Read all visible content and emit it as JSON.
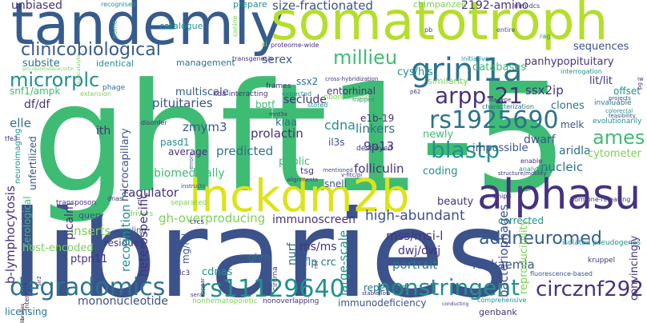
{
  "words": {
    "ghft15": "ghft1-5",
    "libraries": "libraries",
    "tandemly": "tandemly",
    "somatotroph": "somatotroph",
    "lnckdm2b": "lnckdm2b",
    "alphasu": "alphasu",
    "grinl1a": "grinl1a",
    "degradomics": "degradomics",
    "rs11129640": "rs11129640",
    "nonstringent": "nonstringent",
    "circznf292": "circznf292",
    "rs1925690": "rs1925690",
    "arpp21": "arpp-21",
    "blastp": "blastp",
    "millieu": "millieu",
    "microrplc": "microrplc",
    "clinicobiological": "clinicobiological",
    "addneuromed": "addneuromed",
    "ames": "ames",
    "unbiased": "unbiased",
    "sizefractionated": "size-fractionated",
    "amino2192": "2192-amino",
    "chimpanzee": "chimpanzee",
    "prepare": "prepare",
    "catalogue": "catalogue",
    "recognised": "recognised",
    "subsite": "subsite",
    "identical": "identical",
    "management": "management",
    "serex": "serex",
    "cyshis": "cys/his",
    "sequences": "sequences",
    "databases": "databases",
    "panhypopituitary": "panhypopituitary",
    "multiscale": "multiscale",
    "pituitaries": "pituitaries",
    "ssx2": "ssx2",
    "entorhinal": "entorhinal",
    "seclude": "seclude",
    "similarity": "similarity",
    "ssx2ip": "ssx2ip",
    "litlit": "lit/lit",
    "offset": "offset",
    "snf1ampk": "snf1/ampk",
    "dfdf": "df/df",
    "elle": "elle",
    "bptf": "bptf",
    "zmym3": "zmym3",
    "kiaa": "kiaa",
    "prolactin": "prolactin",
    "cdna": "cdna",
    "e1b19": "e1b-19",
    "linkers": "linkers",
    "newly": "newly",
    "dwarf": "dwarf",
    "aridla": "aridla",
    "cytometer": "cytometer",
    "melk": "melk",
    "clones": "clones",
    "ith": "ith",
    "pasd1": "pasd1",
    "average": "average",
    "predicted": "predicted",
    "public": "public",
    "p13": "9p13",
    "impossible": "impossible",
    "nucleic": "nucleic",
    "biomedically": "biomedically",
    "tsg": "tsg",
    "folliculin": "folliculin",
    "coding": "coding",
    "snell": "snell",
    "ragulator": "ragulator",
    "beauty": "beauty",
    "ghoverproducing": "gh-overproducing",
    "immunoscreen": "immunoscreen",
    "highabundant": "high-abundant",
    "corrected": "corrected",
    "inserts": "inserts",
    "recognition": "recognition",
    "heterospecific": "heterospecific",
    "ssmsi": "mss/msi-l",
    "dwjdwj": "dwj/dwj",
    "portrait": "portrait",
    "leukaemia": "leukaemia",
    "msms": "ms/ms",
    "ghrh": "ghrh",
    "flpcrc": "flp crc",
    "largescale": "large-scale",
    "nurf": "nurf",
    "bacteriophages": "bacteriophages",
    "reproducibility": "reproducibility",
    "ptpn11": "ptpn11",
    "hostencoded": "host-encoded",
    "blymphocytosis": "b-lymphocytosis",
    "picalm": "picalm",
    "cdnas": "cdnas",
    "repeated": "repeated",
    "mononucleotide": "mononucleotide",
    "licensing": "licensing",
    "immunodeficiency": "immunodeficiency",
    "nonoverlapping": "nonoverlapping",
    "genbank": "genbank",
    "convincingly": "convincingly",
    "microcapillary": "microcapillary",
    "mgml": "mg/ml",
    "query": "query",
    "residues": "residues",
    "unfertilized": "unfertilized",
    "serological": "serological",
    "ruling": "ruling",
    "stored": "stored",
    "frames": "frames",
    "expected": "expected",
    "ribonuclease": "ribonuclease",
    "proteomewide": "proteome-wide",
    "transgenesis": "transgenesis",
    "kdainteracting": "kda-interacting",
    "phage": "phage",
    "extension": "extension",
    "neuroimaging": "neuroimaging",
    "transposon": "transposon",
    "destroyed": "destroyed",
    "separated": "separated",
    "dnas": "dnas",
    "crcs": "crcs",
    "drivers": "drivers",
    "isolated": "isolated",
    "pseudogenes": "pseudogenes",
    "evolutionarily": "evolutionarily",
    "invaluable": "invaluable",
    "characterization": "characterization",
    "comprehensive": "comprehensive",
    "kruppel": "kruppel",
    "fluorescencebased": "fluorescence-based",
    "enable": "enable",
    "analytical": "analytical",
    "projects": "projects",
    "entire": "entire",
    "initiative": "initiative",
    "interrogation": "interrogation",
    "rag": "rag",
    "pb": "pb",
    "mmdcs": "mm-dcs",
    "xi": "xi",
    "canine": "canine",
    "pomc": "pomc",
    "sera": "sera",
    "lc3": "lc3",
    "interrupt": "interrupt",
    "circrna": "circrna",
    "pg": "pg",
    "disorder": "disorder",
    "il3s": "il3s",
    "crossh": "cross-hybridization",
    "proopio": "pro-opiomelanocortin",
    "autocatalytic": "autocatalytic",
    "iiiatype": "iiia-type",
    "hormonereleasing": "hormone-releasing",
    "bnip3": "bnip3",
    "nonhematopoietic": "nonhematopoietic",
    "stablelow": "stable/low",
    "colorectal": "colorectal",
    "feasibility": "feasibility",
    "structure": "structure/motility",
    "trapped": "trapped",
    "mentioned": "mentioned",
    "vfitcpi": "v-fitc/pi",
    "alignments": "alignments",
    "nrf": "nrf",
    "mnt3a": "mnt3a",
    "errors": "errors",
    "instructs": "instructs",
    "appear": "appear",
    "sir2": "sir2",
    "p62": "p62",
    "abdp": "abd-p",
    "insr": "insr",
    "elevated": "elevated",
    "bispecific": "bispecific",
    "ttd": "ttd",
    "grmx": "grmx",
    "fbxo": "fbxo",
    "conducting": "conducting",
    "gvi": "gvi",
    "fixed": "fixed",
    "ribosomal": "ribosomal",
    "nonlocalized": "nonlocalized",
    "depths": "depths",
    "dnadamage": "dna-damage",
    "gnesin": "gnesin",
    "tfe3": "tfe3",
    "iw": "iw"
  },
  "colors": {
    "navy": "#46327e",
    "indigo": "#3b528b",
    "steel": "#365c8d",
    "blue": "#2c728e",
    "teal": "#21918c",
    "sea": "#1fa187",
    "green": "#3fbc73",
    "lime": "#7ad151",
    "chart": "#b5de2b",
    "yellow": "#dde318"
  }
}
